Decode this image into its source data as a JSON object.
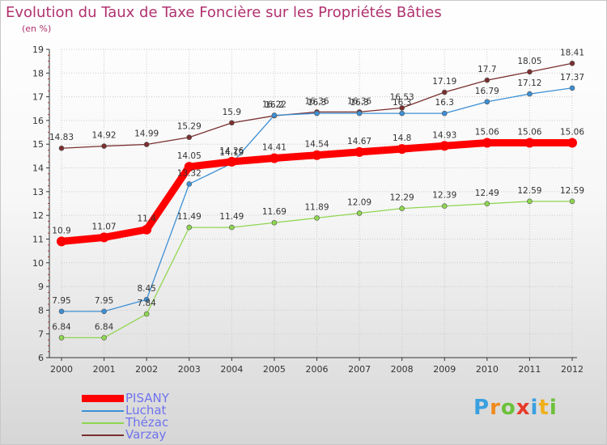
{
  "chart_data": {
    "type": "line",
    "title": "Evolution du Taux de Taxe Foncière sur les Propriétés Bâties",
    "ylabel": "(en %)",
    "xlabel": "",
    "ylim": [
      6,
      19
    ],
    "yticks": [
      "6",
      "7",
      "8",
      "9",
      "10",
      "11",
      "12",
      "13",
      "14",
      "15",
      "16",
      "17",
      "18",
      "19"
    ],
    "categories": [
      "2000",
      "2001",
      "2002",
      "2003",
      "2004",
      "2005",
      "2006",
      "2007",
      "2008",
      "2009",
      "2010",
      "2011",
      "2012"
    ],
    "series": [
      {
        "name": "PISANY",
        "color": "#ff0000",
        "values": [
          10.9,
          11.07,
          11.4,
          14.05,
          14.26,
          14.41,
          14.54,
          14.67,
          14.8,
          14.93,
          15.06,
          15.06,
          15.06
        ],
        "labels": [
          "10.9",
          "11.07",
          "11.4",
          "14.05",
          "14.26",
          "14.41",
          "14.54",
          "14.67",
          "14.8",
          "14.93",
          "15.06",
          "15.06",
          "15.06"
        ]
      },
      {
        "name": "Luchat",
        "color": "#3c8fd4",
        "values": [
          7.95,
          7.95,
          8.45,
          13.32,
          14.19,
          16.22,
          16.3,
          16.3,
          16.3,
          16.3,
          16.79,
          17.12,
          17.37
        ],
        "labels": [
          "7.95",
          "7.95",
          "8.45",
          "13.32",
          "14.19",
          "16.22",
          "16.3",
          "16.3",
          "16.3",
          "16.3",
          "16.79",
          "17.12",
          "17.37"
        ]
      },
      {
        "name": "Thézac",
        "color": "#8fd650",
        "values": [
          6.84,
          6.84,
          7.84,
          11.49,
          11.49,
          11.69,
          11.89,
          12.09,
          12.29,
          12.39,
          12.49,
          12.59,
          12.59
        ],
        "labels": [
          "6.84",
          "6.84",
          "7.84",
          "11.49",
          "11.49",
          "11.69",
          "11.89",
          "12.09",
          "12.29",
          "12.39",
          "12.49",
          "12.59",
          "12.59"
        ]
      },
      {
        "name": "Varzay",
        "color": "#7a2f2f",
        "values": [
          14.83,
          14.92,
          14.99,
          15.29,
          15.9,
          16.2,
          16.36,
          16.36,
          16.53,
          17.19,
          17.7,
          18.05,
          18.41
        ],
        "labels": [
          "14.83",
          "14.92",
          "14.99",
          "15.29",
          "15.9",
          "16.2",
          "16.36",
          "16.36",
          "16.53",
          "17.19",
          "17.7",
          "18.05",
          "18.41"
        ]
      }
    ],
    "legend_position": "bottom-left"
  },
  "logo": {
    "letters": [
      "P",
      "r",
      "o",
      "x",
      "i",
      "t",
      "i"
    ],
    "colors": [
      "#3aa0e0",
      "#f08a1c",
      "#6cc13a",
      "#e83a2a",
      "#3aa0e0",
      "#f0b01c",
      "#6cc13a"
    ]
  }
}
